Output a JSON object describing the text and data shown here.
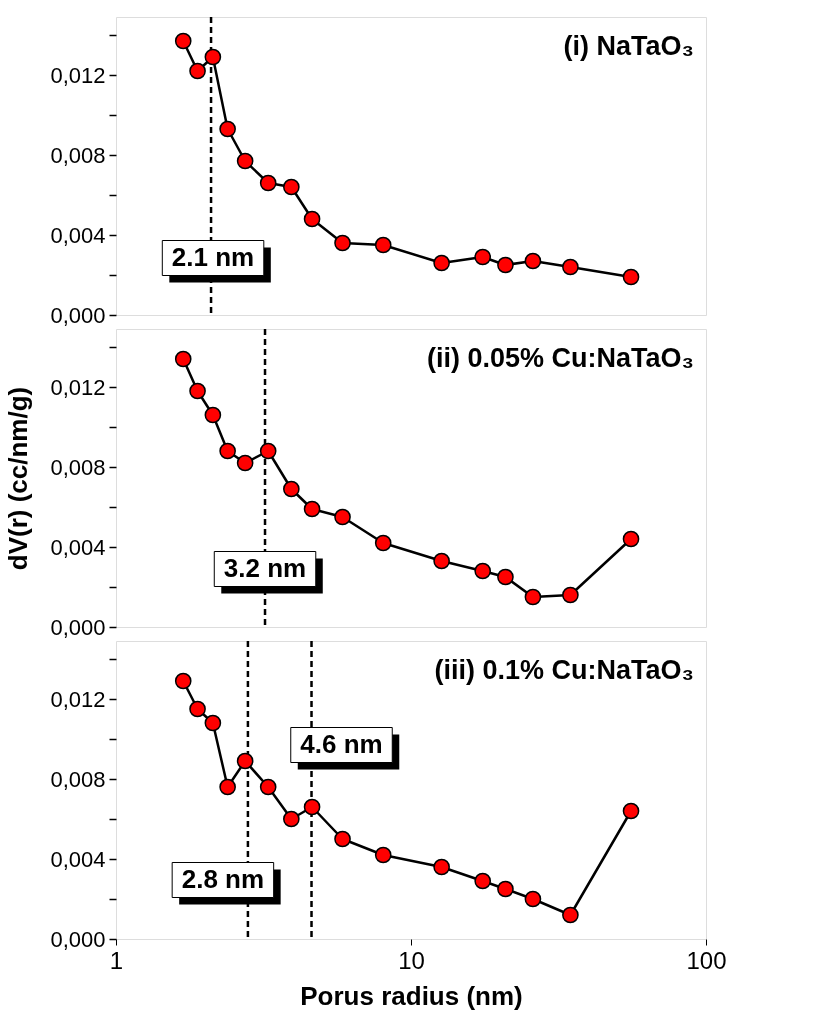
{
  "chart_data": [
    {
      "type": "line",
      "title": "(i) NaTaO₃",
      "marker": "circle",
      "tick_labels": "y",
      "x": [
        1.69,
        1.89,
        2.13,
        2.39,
        2.74,
        3.28,
        3.93,
        4.62,
        5.86,
        8.05,
        12.7,
        17.5,
        20.9,
        25.9,
        34.7,
        55.7
      ],
      "series": [
        {
          "color": "#ff0000",
          "values": [
            0.0137,
            0.0122,
            0.0129,
            0.0093,
            0.0077,
            0.0066,
            0.0064,
            0.0048,
            0.0036,
            0.0035,
            0.0026,
            0.0029,
            0.0025,
            0.0027,
            0.0024,
            0.0019
          ]
        }
      ],
      "xlim": [
        1,
        100
      ],
      "xticks": [
        1,
        10,
        100
      ],
      "log": "x",
      "ylim": [
        0,
        0.0149
      ],
      "yticks": [
        {
          "value": 0,
          "label": "0,000"
        },
        {
          "value": 0.002,
          "label": null
        },
        {
          "value": 0.004,
          "label": "0,004"
        },
        {
          "value": 0.006,
          "label": null
        },
        {
          "value": 0.008,
          "label": "0,008"
        },
        {
          "value": 0.01,
          "label": null
        },
        {
          "value": 0.012,
          "label": "0,012"
        },
        {
          "value": 0.014,
          "label": null
        }
      ],
      "ref_lines": [
        {
          "axis": "x",
          "value": 2.1,
          "line_style": "dashed"
        }
      ],
      "annotations": [
        "2.1 nm"
      ]
    },
    {
      "type": "line",
      "title": "(ii) 0.05% Cu:NaTaO₃",
      "ylabel": "dV(r) (cc/nm/g)",
      "marker": "circle",
      "tick_labels": "y",
      "x": [
        1.69,
        1.89,
        2.13,
        2.39,
        2.74,
        3.28,
        3.93,
        4.62,
        5.86,
        8.05,
        12.7,
        17.5,
        20.9,
        25.9,
        34.7,
        55.7
      ],
      "series": [
        {
          "color": "#ff0000",
          "values": [
            0.0134,
            0.0118,
            0.0106,
            0.0088,
            0.0082,
            0.0088,
            0.0069,
            0.0059,
            0.0055,
            0.0042,
            0.0033,
            0.0028,
            0.0025,
            0.0015,
            0.0016,
            0.0044
          ]
        }
      ],
      "xlim": [
        1,
        100
      ],
      "xticks": [
        1,
        10,
        100
      ],
      "log": "x",
      "ylim": [
        0,
        0.0149
      ],
      "yticks": [
        {
          "value": 0,
          "label": "0,000"
        },
        {
          "value": 0.002,
          "label": null
        },
        {
          "value": 0.004,
          "label": "0,004"
        },
        {
          "value": 0.006,
          "label": null
        },
        {
          "value": 0.008,
          "label": "0,008"
        },
        {
          "value": 0.01,
          "label": null
        },
        {
          "value": 0.012,
          "label": "0,012"
        },
        {
          "value": 0.014,
          "label": null
        }
      ],
      "ref_lines": [
        {
          "axis": "x",
          "value": 3.2,
          "line_style": "dashed"
        }
      ],
      "annotations": [
        "3.2 nm"
      ]
    },
    {
      "type": "line",
      "title": "(iii) 0.1% Cu:NaTaO₃",
      "xlabel": "Porus radius (nm)",
      "marker": "circle",
      "x": [
        1.69,
        1.89,
        2.13,
        2.39,
        2.74,
        3.28,
        3.93,
        4.62,
        5.86,
        8.05,
        12.7,
        17.5,
        20.9,
        25.9,
        34.7,
        55.7
      ],
      "series": [
        {
          "color": "#ff0000",
          "values": [
            0.0129,
            0.0115,
            0.0108,
            0.0076,
            0.0089,
            0.0076,
            0.006,
            0.0066,
            0.005,
            0.0042,
            0.0036,
            0.0029,
            0.0025,
            0.002,
            0.0012,
            0.0064
          ]
        }
      ],
      "xlim": [
        1,
        100
      ],
      "xticks": [
        1,
        10,
        100
      ],
      "log": "x",
      "ylim": [
        0,
        0.0149
      ],
      "yticks": [
        {
          "value": 0,
          "label": "0,000"
        },
        {
          "value": 0.002,
          "label": null
        },
        {
          "value": 0.004,
          "label": "0,004"
        },
        {
          "value": 0.006,
          "label": null
        },
        {
          "value": 0.008,
          "label": "0,008"
        },
        {
          "value": 0.01,
          "label": null
        },
        {
          "value": 0.012,
          "label": "0,012"
        },
        {
          "value": 0.014,
          "label": null
        }
      ],
      "ref_lines": [
        {
          "axis": "x",
          "value": 2.8,
          "line_style": "dashed"
        },
        {
          "axis": "x",
          "value": 4.6,
          "line_style": "dashed"
        }
      ],
      "annotations": [
        "2.8 nm",
        "4.6 nm"
      ]
    }
  ]
}
